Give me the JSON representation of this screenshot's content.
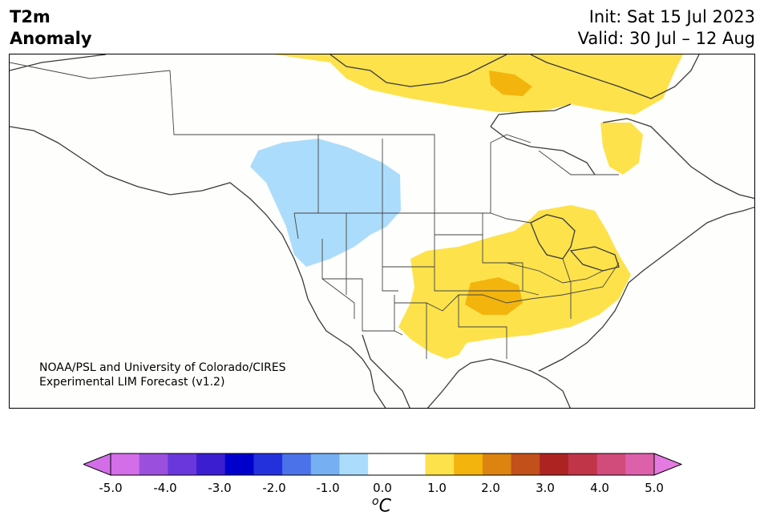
{
  "header": {
    "variable": "T2m",
    "quantity": "Anomaly",
    "init": "Init: Sat 15 Jul 2023",
    "valid": "Valid: 30 Jul – 12 Aug"
  },
  "credit": {
    "line1": "NOAA/PSL and University of Colorado/CIRES",
    "line2": "Experimental LIM Forecast (v1.2)"
  },
  "map": {
    "region": "North America",
    "anomalies": [
      {
        "area": "Northern Canada / Arctic Archipelago",
        "level": "+0.5 to +1.5",
        "color": "#fde24b"
      },
      {
        "area": "Hudson Bay west coast",
        "level": "+1.5 to +2.0",
        "color": "#f2b40d"
      },
      {
        "area": "Labrador / Quebec",
        "level": "+0.5 to +1.5",
        "color": "#fde24b"
      },
      {
        "area": "Pacific Northwest / western Canada",
        "level": "-1.0 to -0.5",
        "color": "#acdcfb"
      },
      {
        "area": "Central and Eastern US / Great Lakes",
        "level": "+0.5 to +1.5",
        "color": "#fde24b"
      },
      {
        "area": "Southern Plains (Oklahoma/Missouri)",
        "level": "+1.5 to +2.0",
        "color": "#f2b40d"
      }
    ]
  },
  "colorbar": {
    "label": "C",
    "label_sup": "o",
    "ticks": [
      "-5.0",
      "-4.0",
      "-3.0",
      "-2.0",
      "-1.0",
      "0.0",
      "1.0",
      "2.0",
      "3.0",
      "4.0",
      "5.0"
    ],
    "colors": [
      "#d36ee8",
      "#9b4fdd",
      "#6a37dd",
      "#3a1ed0",
      "#0000cd",
      "#2331dc",
      "#4b72e8",
      "#76b0f3",
      "#acdcfb",
      "#ffffff",
      "#ffffff",
      "#fde24b",
      "#f2b40d",
      "#dc840f",
      "#c2501a",
      "#ad2322",
      "#c13549",
      "#d24c7b",
      "#dd61aa"
    ],
    "extend_low": "#d36ee8",
    "extend_high": "#e57ae0"
  }
}
